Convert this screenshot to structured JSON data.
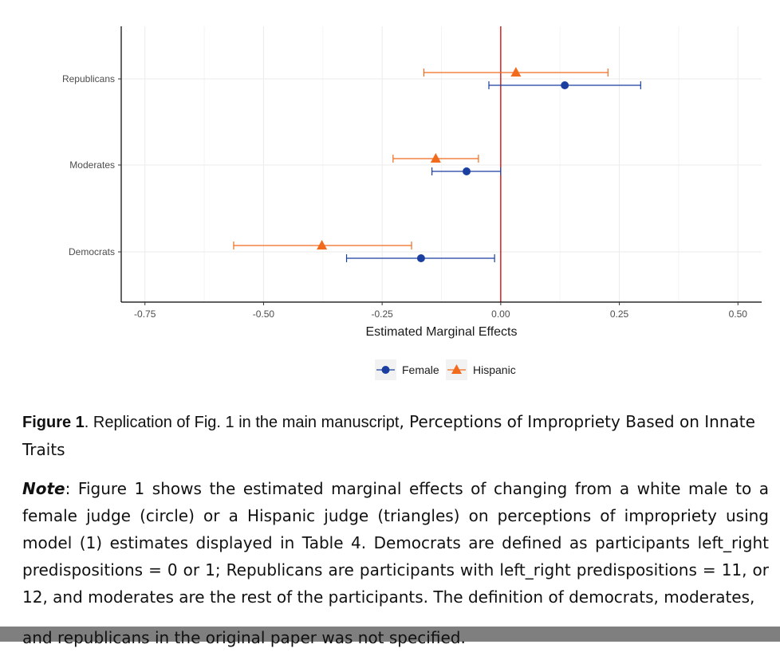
{
  "chart_data": {
    "type": "scatter",
    "subtype": "point-errorbar (coefficient plot)",
    "categories": [
      "Republicans",
      "Moderates",
      "Democrats"
    ],
    "xlabel": "Estimated Marginal Effects",
    "xlim": [
      -0.8,
      0.55
    ],
    "xticks": [
      -0.75,
      -0.5,
      -0.25,
      0.0,
      0.25,
      0.5
    ],
    "xtick_labels": [
      "-0.75",
      "-0.50",
      "-0.25",
      "0.00",
      "0.25",
      "0.50"
    ],
    "reference_line": {
      "x": 0,
      "color": "#cc0000"
    },
    "grid": true,
    "legend_position": "bottom",
    "series": [
      {
        "name": "Female",
        "marker": "circle",
        "color": "#1a3fa0",
        "points": [
          {
            "category": "Republicans",
            "estimate": 0.135,
            "lower": -0.025,
            "upper": 0.295
          },
          {
            "category": "Moderates",
            "estimate": -0.072,
            "lower": -0.145,
            "upper": 0.0
          },
          {
            "category": "Democrats",
            "estimate": -0.168,
            "lower": -0.325,
            "upper": -0.013
          }
        ]
      },
      {
        "name": "Hispanic",
        "marker": "triangle",
        "color": "#f26b1d",
        "points": [
          {
            "category": "Republicans",
            "estimate": 0.032,
            "lower": -0.162,
            "upper": 0.226
          },
          {
            "category": "Moderates",
            "estimate": -0.137,
            "lower": -0.227,
            "upper": -0.047
          },
          {
            "category": "Democrats",
            "estimate": -0.377,
            "lower": -0.563,
            "upper": -0.188
          }
        ]
      }
    ]
  },
  "caption": {
    "figure_label": "Figure 1",
    "title_part1": ". Replication of Fig. 1 in the main manuscript",
    "title_part2": ", Perceptions of Impropriety Based on Innate Traits"
  },
  "note": {
    "label": "Note",
    "text": ": Figure 1 shows the estimated marginal effects of changing from a white male to a female judge (circle) or a Hispanic judge (triangles) on perceptions of impropriety using model (1) estimates displayed in Table 4. Democrats are defined as participants left_right predispositions = 0 or 1; Republicans are participants with left_right predispositions = 11, or 12, and moderates are the rest of the participants. The definition of democrats, moderates,",
    "last_line": "and republicans in the original paper was not specified."
  }
}
